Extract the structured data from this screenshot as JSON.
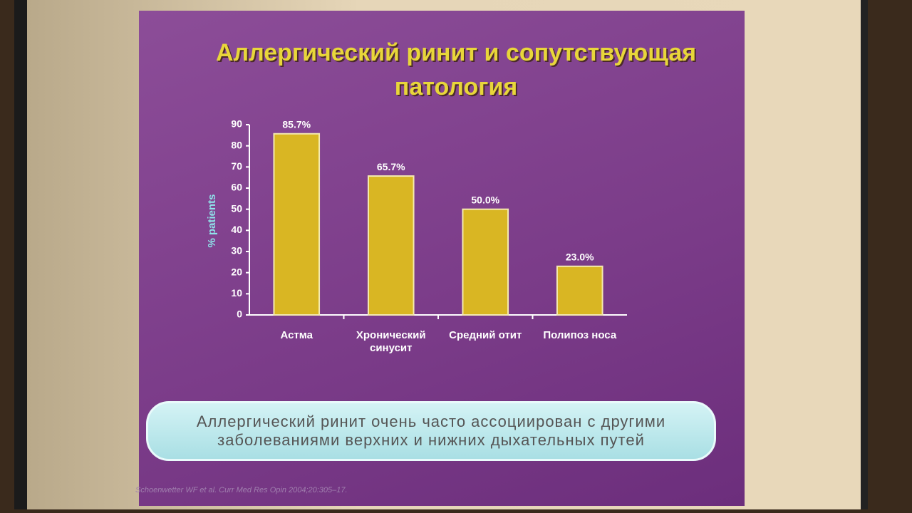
{
  "chart_data": {
    "type": "bar",
    "title": "Аллергический ринит и сопутствующая патология",
    "y_label": "% patients",
    "categories": [
      "Астма",
      "Хронический синусит",
      "Средний отит",
      "Полипоз носа"
    ],
    "values": [
      85.7,
      65.7,
      50.0,
      23.0
    ],
    "value_labels": [
      "85.7%",
      "65.7%",
      "50.0%",
      "23.0%"
    ],
    "color": "#d9b623",
    "ylim": [
      0,
      90
    ],
    "yticks": [
      0,
      10,
      20,
      30,
      40,
      50,
      60,
      70,
      80,
      90
    ],
    "note": "Аллергический ринит очень часто ассоциирован с другими заболеваниями верхних и нижних дыхательных путей",
    "source": "Schoenwetter WF et al. Curr Med Res Opin 2004;20:305–17."
  }
}
